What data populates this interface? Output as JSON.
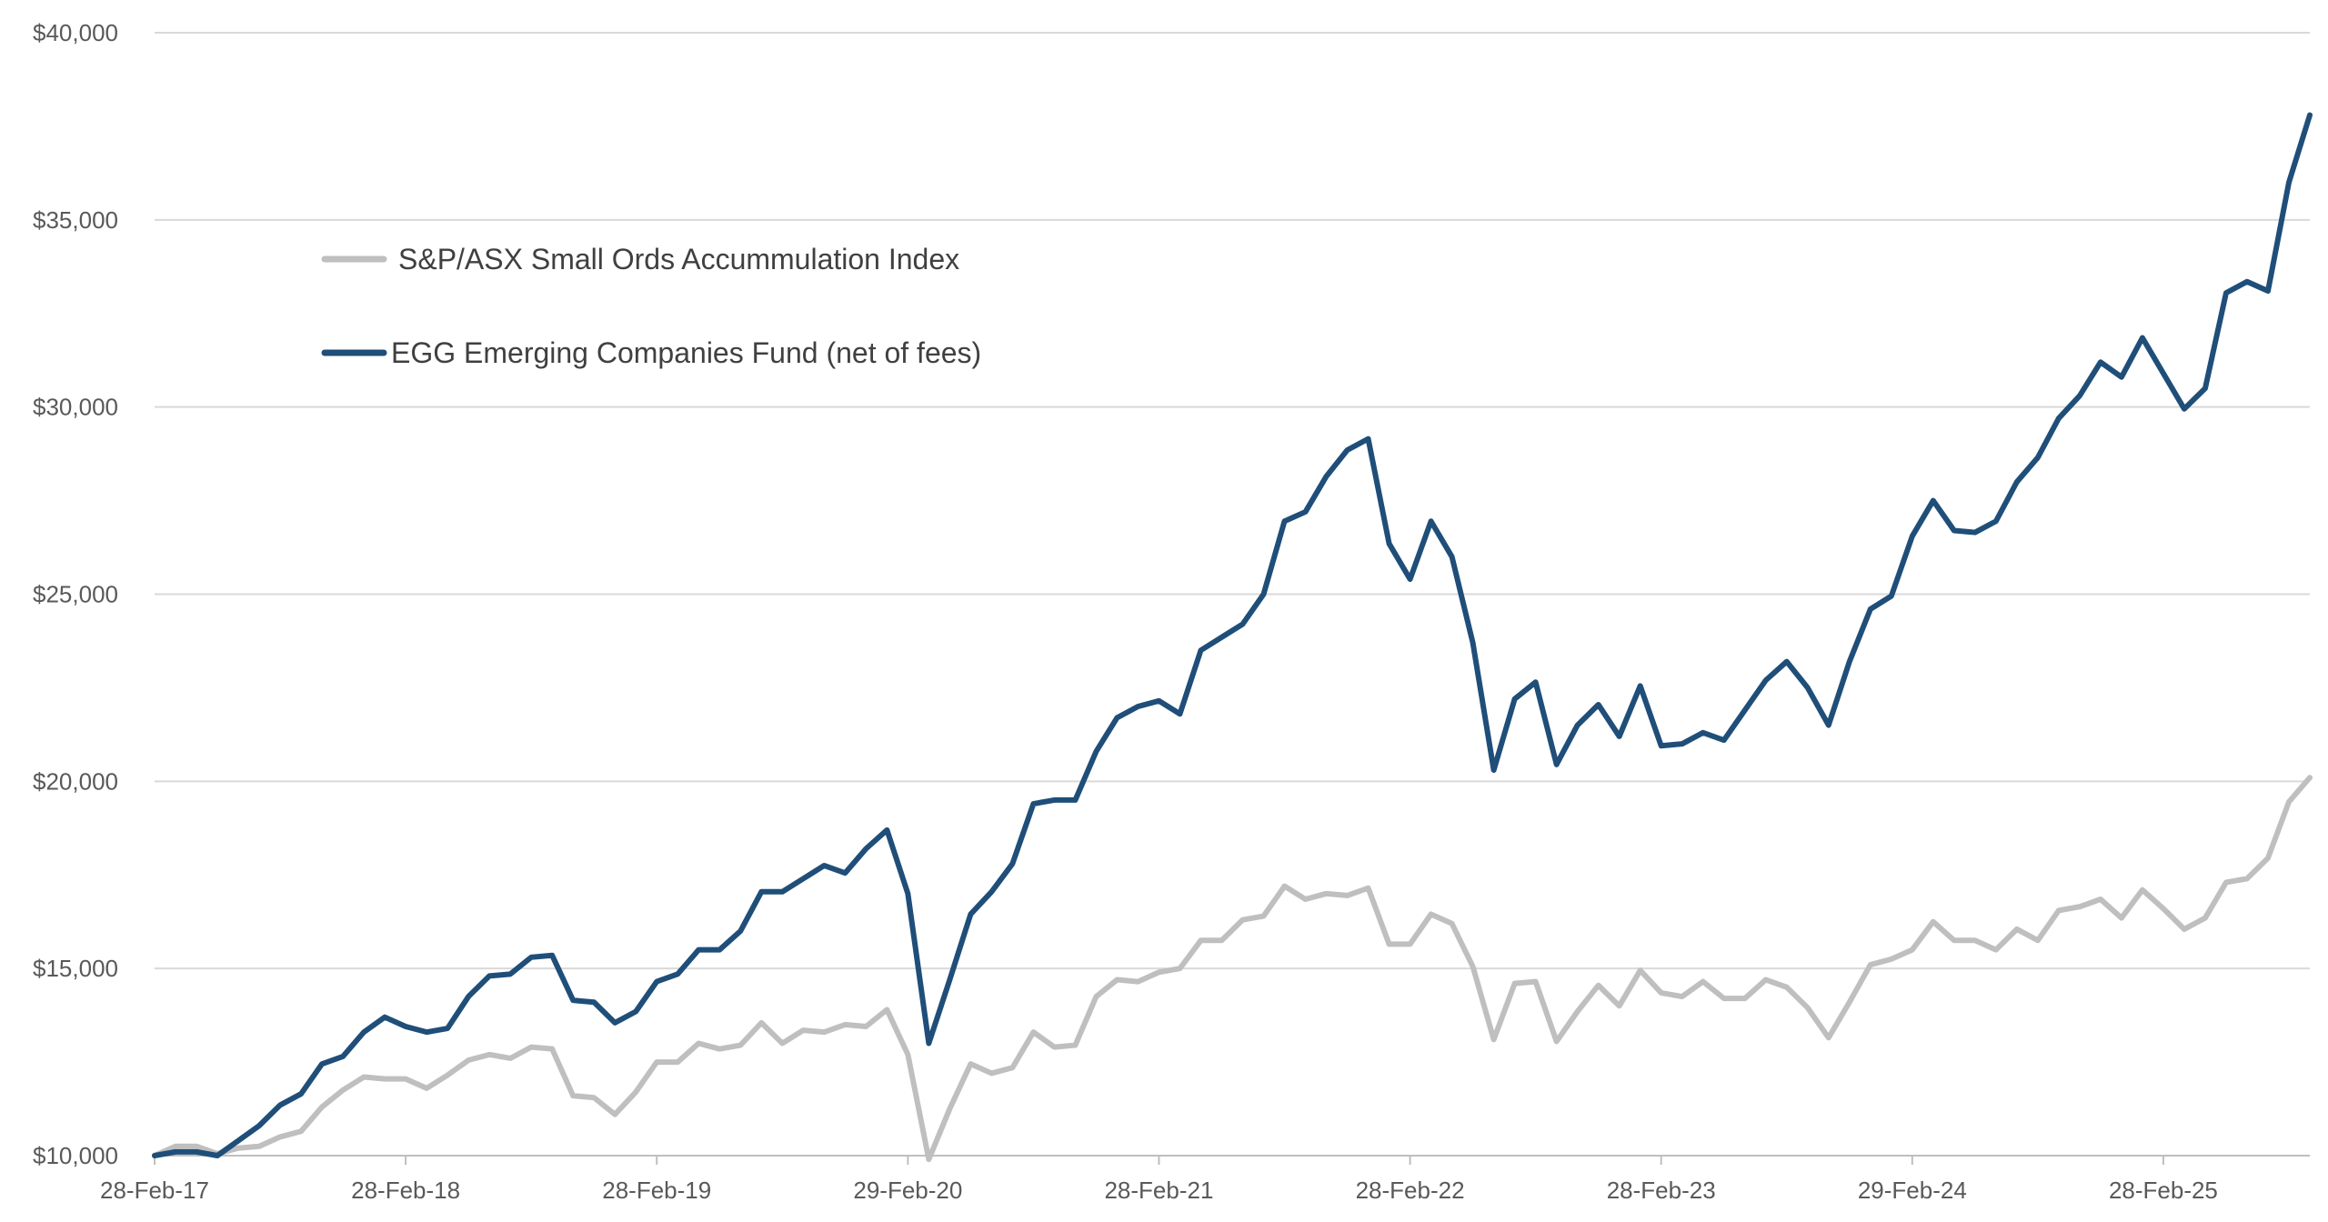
{
  "chart_data": {
    "type": "line",
    "title": "",
    "xlabel": "",
    "ylabel": "",
    "ylim": [
      10000,
      40000
    ],
    "yticks": [
      10000,
      15000,
      20000,
      25000,
      30000,
      35000,
      40000
    ],
    "ytick_labels": [
      "$10,000",
      "$15,000",
      "$20,000",
      "$25,000",
      "$30,000",
      "$35,000",
      "$40,000"
    ],
    "xtick_labels": [
      "28-Feb-17",
      "28-Feb-18",
      "28-Feb-19",
      "29-Feb-20",
      "28-Feb-21",
      "28-Feb-22",
      "28-Feb-23",
      "29-Feb-24",
      "28-Feb-25"
    ],
    "xtick_months": [
      0,
      12,
      24,
      36,
      48,
      60,
      72,
      84,
      96
    ],
    "x_start": "2017-02",
    "x_end": "2025-09",
    "grid": true,
    "legend_position": "upper-left",
    "series": [
      {
        "name": "S&P/ASX Small Ords Accummulation Index",
        "color": "#bfbfbf",
        "values": [
          10000,
          10250,
          10250,
          10050,
          10200,
          10250,
          10500,
          10650,
          11300,
          11750,
          12100,
          12050,
          12050,
          11800,
          12150,
          12550,
          12700,
          12600,
          12900,
          12850,
          11600,
          11550,
          11100,
          11700,
          12500,
          12500,
          13000,
          12850,
          12950,
          13550,
          13000,
          13350,
          13300,
          13500,
          13450,
          13900,
          12700,
          9900,
          11250,
          12450,
          12200,
          12350,
          13300,
          12900,
          12950,
          14250,
          14700,
          14650,
          14900,
          15000,
          15750,
          15750,
          16300,
          16400,
          17200,
          16850,
          17000,
          16950,
          17150,
          15650,
          15650,
          16450,
          16200,
          15050,
          13100,
          14600,
          14650,
          13050,
          13850,
          14550,
          14000,
          14950,
          14350,
          14250,
          14650,
          14200,
          14200,
          14700,
          14500,
          13950,
          13150,
          14100,
          15100,
          15250,
          15500,
          16250,
          15750,
          15750,
          15500,
          16050,
          15750,
          16550,
          16650,
          16850,
          16350,
          17100,
          16600,
          16050,
          16350,
          17300,
          17400,
          17950,
          19450,
          20100
        ]
      },
      {
        "name": "EGG Emerging Companies Fund (net of fees)",
        "color": "#1f4e79",
        "values": [
          10000,
          10100,
          10100,
          10000,
          10400,
          10800,
          11350,
          11650,
          12450,
          12650,
          13300,
          13700,
          13450,
          13300,
          13400,
          14250,
          14800,
          14850,
          15300,
          15350,
          14150,
          14100,
          13550,
          13850,
          14650,
          14850,
          15500,
          15500,
          16000,
          17050,
          17050,
          17400,
          17750,
          17550,
          18200,
          18700,
          17000,
          13000,
          14700,
          16450,
          17050,
          17800,
          19400,
          19500,
          19500,
          20800,
          21700,
          22000,
          22150,
          21800,
          23500,
          23850,
          24200,
          25000,
          26950,
          27200,
          28150,
          28850,
          29150,
          26350,
          25400,
          26950,
          26000,
          23700,
          20300,
          22200,
          22650,
          20450,
          21500,
          22050,
          21200,
          22550,
          20950,
          21000,
          21300,
          21100,
          21900,
          22700,
          23200,
          22500,
          21500,
          23200,
          24600,
          24950,
          26550,
          27500,
          26700,
          26650,
          26950,
          28000,
          28650,
          29700,
          30300,
          31200,
          30800,
          31850,
          30900,
          29950,
          30500,
          33050,
          33350,
          33100,
          36000,
          37800
        ]
      }
    ]
  }
}
